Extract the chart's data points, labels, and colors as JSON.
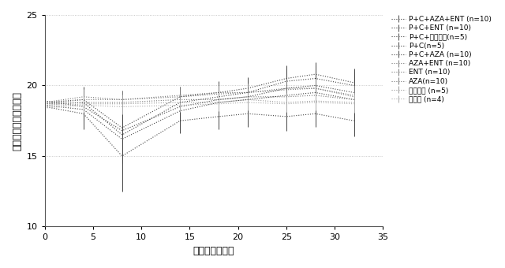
{
  "title": "",
  "xlabel": "日数（治療後）",
  "ylabel": "マウス体重（グラム）",
  "xlim": [
    0,
    35
  ],
  "ylim": [
    10,
    25
  ],
  "yticks": [
    10,
    15,
    20,
    25
  ],
  "xticks": [
    0,
    5,
    10,
    15,
    20,
    25,
    30,
    35
  ],
  "series": [
    {
      "label": "P+C+AZA+ENT (n=10)",
      "x": [
        0,
        4,
        8,
        14,
        18,
        21,
        25,
        28,
        32
      ],
      "y": [
        18.8,
        19.0,
        17.0,
        19.2,
        19.5,
        19.8,
        20.5,
        20.8,
        20.2
      ],
      "yerr": [
        0.3,
        0.9,
        1.8,
        0.7,
        0.8,
        0.8,
        0.9,
        0.85,
        1.0
      ],
      "color": "#444444",
      "linestyle": "dotted",
      "linewidth": 0.8
    },
    {
      "label": "P+C+ENT (n=10)",
      "x": [
        0,
        4,
        8,
        14,
        18,
        21,
        25,
        28,
        32
      ],
      "y": [
        18.7,
        18.8,
        16.5,
        18.8,
        19.2,
        19.5,
        20.3,
        20.5,
        20.0
      ],
      "yerr": [
        0.3,
        1.0,
        2.0,
        0.8,
        0.8,
        0.9,
        0.9,
        0.9,
        1.0
      ],
      "color": "#444444",
      "linestyle": "dotted",
      "linewidth": 0.8
    },
    {
      "label": "P+C+ビヒクル(n=5)",
      "x": [
        0,
        4,
        8,
        14,
        18,
        21,
        25,
        28,
        32
      ],
      "y": [
        18.9,
        18.5,
        16.8,
        18.5,
        19.0,
        19.2,
        19.8,
        20.0,
        19.5
      ],
      "yerr": [
        0.3,
        0.9,
        1.6,
        0.7,
        0.7,
        0.8,
        0.85,
        0.8,
        0.9
      ],
      "color": "#444444",
      "linestyle": "dotted",
      "linewidth": 0.8
    },
    {
      "label": "P+C(n=5)",
      "x": [
        0,
        4,
        8,
        14,
        18,
        21,
        25,
        28,
        32
      ],
      "y": [
        18.6,
        18.3,
        16.2,
        18.2,
        18.8,
        19.0,
        19.3,
        19.5,
        19.0
      ],
      "yerr": [
        0.3,
        0.8,
        1.5,
        0.65,
        0.7,
        0.75,
        0.8,
        0.75,
        0.9
      ],
      "color": "#444444",
      "linestyle": "dotted",
      "linewidth": 0.8
    },
    {
      "label": "P+C+AZA (n=10)",
      "x": [
        0,
        4,
        8,
        14,
        18,
        21,
        25,
        28,
        32
      ],
      "y": [
        18.5,
        18.0,
        15.0,
        17.5,
        17.8,
        18.0,
        17.8,
        18.0,
        17.5
      ],
      "yerr": [
        0.3,
        1.1,
        2.5,
        0.9,
        0.9,
        0.95,
        1.0,
        0.95,
        1.1
      ],
      "color": "#444444",
      "linestyle": "dotted",
      "linewidth": 0.8
    },
    {
      "label": "AZA+ENT (n=10)",
      "x": [
        0,
        4,
        8,
        14,
        18,
        21,
        25,
        28,
        32
      ],
      "y": [
        18.8,
        19.2,
        19.0,
        19.3,
        19.5,
        19.5,
        19.8,
        19.8,
        19.3
      ],
      "yerr": [
        0.25,
        0.55,
        0.65,
        0.55,
        0.6,
        0.65,
        0.7,
        0.65,
        0.7
      ],
      "color": "#777777",
      "linestyle": "dotted",
      "linewidth": 0.8
    },
    {
      "label": "ENT (n=10)",
      "x": [
        0,
        4,
        8,
        14,
        18,
        21,
        25,
        28,
        32
      ],
      "y": [
        18.7,
        19.0,
        19.0,
        19.2,
        19.4,
        19.5,
        19.7,
        19.8,
        19.2
      ],
      "yerr": [
        0.25,
        0.55,
        0.65,
        0.55,
        0.6,
        0.65,
        0.7,
        0.65,
        0.7
      ],
      "color": "#777777",
      "linestyle": "dotted",
      "linewidth": 0.8
    },
    {
      "label": "AZA(n=10)",
      "x": [
        0,
        4,
        8,
        14,
        18,
        21,
        25,
        28,
        32
      ],
      "y": [
        18.6,
        18.8,
        18.8,
        19.0,
        19.0,
        19.2,
        19.2,
        19.3,
        19.0
      ],
      "yerr": [
        0.25,
        0.55,
        0.65,
        0.55,
        0.6,
        0.65,
        0.7,
        0.65,
        0.7
      ],
      "color": "#777777",
      "linestyle": "dotted",
      "linewidth": 0.8
    },
    {
      "label": "ビヒクル (n=5)",
      "x": [
        0,
        4,
        8,
        14,
        18,
        21,
        25,
        28,
        32
      ],
      "y": [
        18.5,
        18.7,
        18.7,
        18.8,
        18.8,
        19.0,
        18.8,
        18.9,
        18.8
      ],
      "yerr": [
        0.25,
        0.55,
        0.65,
        0.55,
        0.55,
        0.6,
        0.65,
        0.6,
        0.7
      ],
      "color": "#999999",
      "linestyle": "dotted",
      "linewidth": 0.8
    },
    {
      "label": "未治療 (n=4)",
      "x": [
        0,
        4,
        8,
        14,
        18,
        21,
        25,
        28,
        32
      ],
      "y": [
        18.4,
        18.6,
        18.5,
        18.6,
        18.7,
        18.8,
        18.7,
        18.8,
        18.7
      ],
      "yerr": [
        0.2,
        0.5,
        0.55,
        0.5,
        0.5,
        0.55,
        0.6,
        0.55,
        0.65
      ],
      "color": "#aaaaaa",
      "linestyle": "dotted",
      "linewidth": 0.8
    }
  ],
  "background_color": "#ffffff",
  "legend_fontsize": 6.5,
  "axis_label_fontsize": 9,
  "tick_fontsize": 8
}
